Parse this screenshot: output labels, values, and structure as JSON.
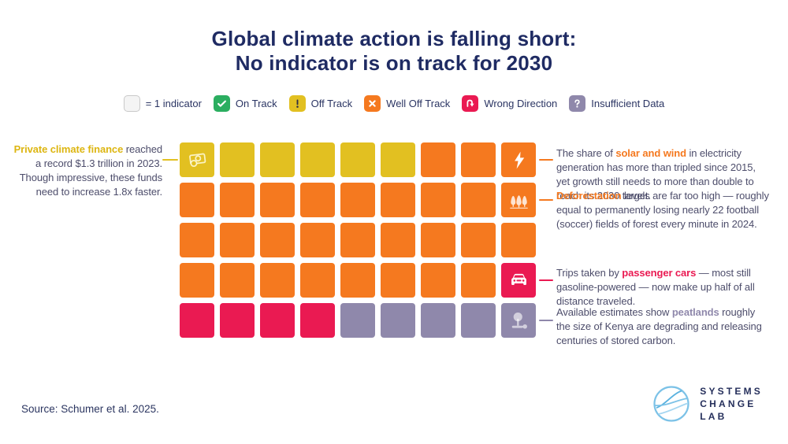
{
  "title": {
    "line1": "Global climate action is falling short:",
    "line2": "No indicator is on track for 2030"
  },
  "legend": {
    "unit_label": "= 1 indicator",
    "items": [
      {
        "key": "on_track",
        "label": "On Track"
      },
      {
        "key": "off_track",
        "label": "Off Track"
      },
      {
        "key": "well_off_track",
        "label": "Well Off Track"
      },
      {
        "key": "wrong_direction",
        "label": "Wrong Direction"
      },
      {
        "key": "insufficient_data",
        "label": "Insufficient Data"
      }
    ]
  },
  "colors": {
    "navy": "#1F2B63",
    "body_text": "#4D4D6B",
    "on_track": "#2BAE60",
    "off_track": "#E2C021",
    "well_off_track": "#F5791F",
    "wrong_direction": "#EA1A52",
    "insufficient_data": "#8F88AB",
    "blank_swatch": "#F4F4F4"
  },
  "chart_data": {
    "type": "heatmap",
    "title": "Global climate action is falling short: No indicator is on track for 2030",
    "unit": "1 square = 1 indicator",
    "rows": 5,
    "columns": 9,
    "cells": [
      [
        "off_track",
        "off_track",
        "off_track",
        "off_track",
        "off_track",
        "off_track",
        "well_off_track",
        "well_off_track",
        "well_off_track"
      ],
      [
        "well_off_track",
        "well_off_track",
        "well_off_track",
        "well_off_track",
        "well_off_track",
        "well_off_track",
        "well_off_track",
        "well_off_track",
        "well_off_track"
      ],
      [
        "well_off_track",
        "well_off_track",
        "well_off_track",
        "well_off_track",
        "well_off_track",
        "well_off_track",
        "well_off_track",
        "well_off_track",
        "well_off_track"
      ],
      [
        "well_off_track",
        "well_off_track",
        "well_off_track",
        "well_off_track",
        "well_off_track",
        "well_off_track",
        "well_off_track",
        "well_off_track",
        "wrong_direction"
      ],
      [
        "wrong_direction",
        "wrong_direction",
        "wrong_direction",
        "wrong_direction",
        "insufficient_data",
        "insufficient_data",
        "insufficient_data",
        "insufficient_data",
        "insufficient_data"
      ]
    ],
    "status_counts": {
      "on_track": 0,
      "off_track": 6,
      "well_off_track": 29,
      "wrong_direction": 5,
      "insufficient_data": 5
    },
    "total_indicators": 45
  },
  "grid": {
    "cell_icons": [
      {
        "row": 0,
        "col": 0,
        "icon": "money-icon"
      },
      {
        "row": 0,
        "col": 8,
        "icon": "lightning-icon"
      },
      {
        "row": 1,
        "col": 8,
        "icon": "trees-icon"
      },
      {
        "row": 3,
        "col": 8,
        "icon": "car-icon"
      },
      {
        "row": 4,
        "col": 8,
        "icon": "peatland-icon"
      }
    ]
  },
  "annotations": {
    "finance": {
      "highlight": "Private climate finance",
      "rest": " reached a record $1.3 trillion in 2023. Though impressive, these funds need to increase 1.8x faster.",
      "highlight_color": "#DDB612"
    },
    "solar": {
      "pre": "The share of ",
      "highlight": "solar and wind",
      "post": " in electricity generation has more than tripled since 2015, yet growth still needs to more than double to reach its 2030 target.",
      "highlight_color": "#F5791F"
    },
    "deforestation": {
      "pre": "",
      "highlight": "Deforestation",
      "post": " levels are far too high — roughly equal to permanently losing nearly 22 football (soccer) fields of forest every minute in 2024.",
      "highlight_color": "#F5791F"
    },
    "cars": {
      "pre": "Trips taken by ",
      "highlight": "passenger cars",
      "post": " — most still gasoline-powered — now make up half of all distance traveled.",
      "highlight_color": "#EA1A52"
    },
    "peatlands": {
      "pre": "Available estimates show ",
      "highlight": "peatlands",
      "post": " roughly the size of Kenya are degrading and releasing centuries of stored carbon.",
      "highlight_color": "#8F88AB"
    }
  },
  "source": "Source: Schumer et al. 2025.",
  "logo": {
    "line1": "SYSTEMS",
    "line2": "CHANGE",
    "line3": "LAB"
  }
}
